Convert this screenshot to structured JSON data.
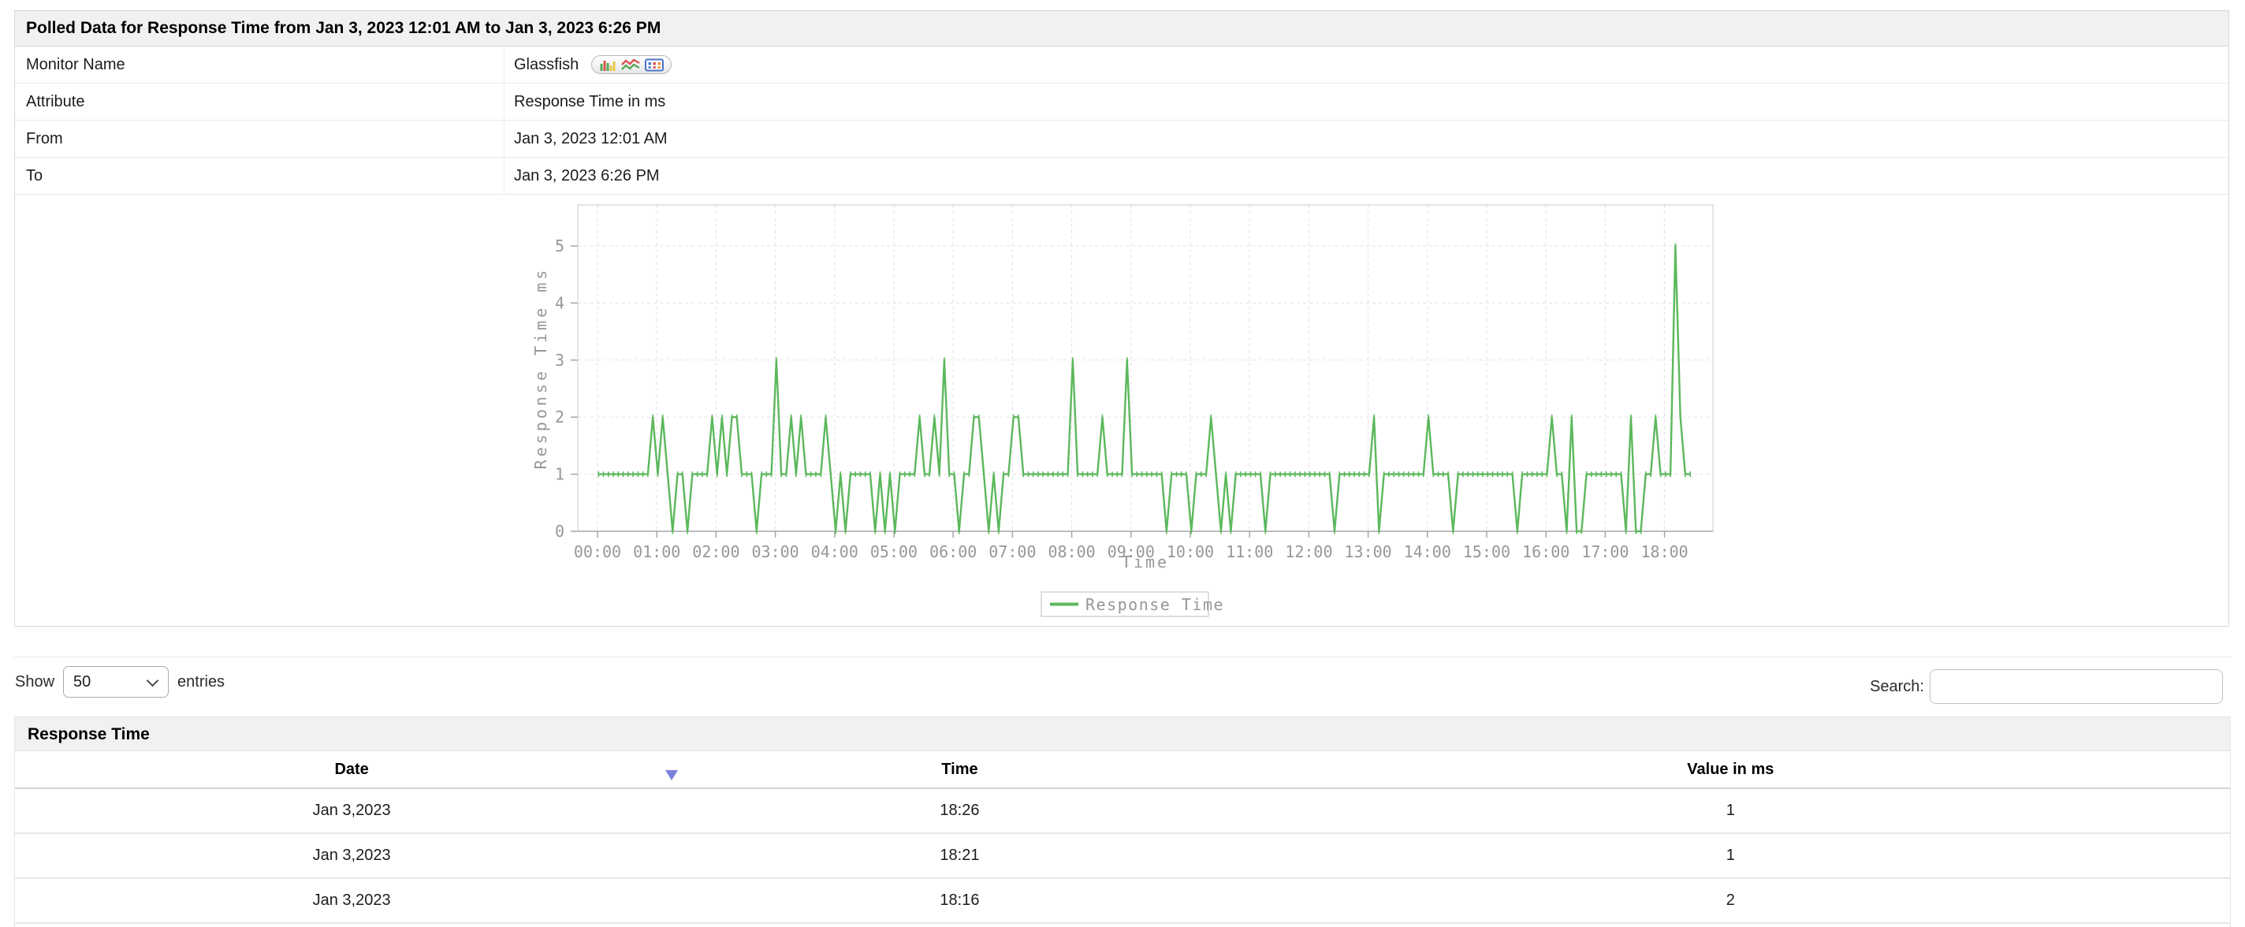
{
  "header": {
    "title": "Polled Data for Response Time from Jan 3, 2023 12:01 AM to Jan 3, 2023 6:26 PM"
  },
  "info": {
    "rows": [
      {
        "label": "Monitor Name",
        "value": "Glassfish"
      },
      {
        "label": "Attribute",
        "value": "Response Time in ms"
      },
      {
        "label": "From",
        "value": "Jan 3, 2023 12:01 AM"
      },
      {
        "label": "To",
        "value": "Jan 3, 2023 6:26 PM"
      }
    ],
    "monitor_icons": [
      "bar-chart-icon",
      "line-graph-icon",
      "data-grid-icon"
    ]
  },
  "chart_data": {
    "type": "line",
    "title": "",
    "xlabel": "Time",
    "ylabel": "Response Time ms",
    "series_name": "Response Time",
    "line_color": "#5cb85c",
    "x_ticks": [
      "00:00",
      "01:00",
      "02:00",
      "03:00",
      "04:00",
      "05:00",
      "06:00",
      "07:00",
      "08:00",
      "09:00",
      "10:00",
      "11:00",
      "12:00",
      "13:00",
      "14:00",
      "15:00",
      "16:00",
      "17:00",
      "18:00"
    ],
    "y_ticks": [
      0,
      1,
      2,
      3,
      4,
      5
    ],
    "ylim": [
      0,
      5.72
    ],
    "grid": "dashed",
    "legend_position": "bottom-center",
    "start_time": "00:01",
    "interval_minutes": 5,
    "values": [
      1,
      1,
      1,
      1,
      1,
      1,
      1,
      1,
      1,
      1,
      1,
      2,
      1,
      2,
      1,
      0,
      1,
      1,
      0,
      1,
      1,
      1,
      1,
      2,
      1,
      2,
      1,
      2,
      2,
      1,
      1,
      1,
      0,
      1,
      1,
      1,
      3,
      1,
      1,
      2,
      1,
      2,
      1,
      1,
      1,
      1,
      2,
      1,
      0,
      1,
      0,
      1,
      1,
      1,
      1,
      1,
      0,
      1,
      0,
      1,
      0,
      1,
      1,
      1,
      1,
      2,
      1,
      1,
      2,
      1,
      3,
      1,
      1,
      0,
      1,
      1,
      2,
      2,
      1,
      0,
      1,
      0,
      1,
      1,
      2,
      2,
      1,
      1,
      1,
      1,
      1,
      1,
      1,
      1,
      1,
      1,
      3,
      1,
      1,
      1,
      1,
      1,
      2,
      1,
      1,
      1,
      1,
      3,
      1,
      1,
      1,
      1,
      1,
      1,
      1,
      0,
      1,
      1,
      1,
      1,
      0,
      1,
      1,
      1,
      2,
      1,
      0,
      1,
      0,
      1,
      1,
      1,
      1,
      1,
      1,
      0,
      1,
      1,
      1,
      1,
      1,
      1,
      1,
      1,
      1,
      1,
      1,
      1,
      1,
      0,
      1,
      1,
      1,
      1,
      1,
      1,
      1,
      2,
      0,
      1,
      1,
      1,
      1,
      1,
      1,
      1,
      1,
      1,
      2,
      1,
      1,
      1,
      1,
      0,
      1,
      1,
      1,
      1,
      1,
      1,
      1,
      1,
      1,
      1,
      1,
      1,
      0,
      1,
      1,
      1,
      1,
      1,
      1,
      2,
      1,
      1,
      0,
      2,
      0,
      0,
      1,
      1,
      1,
      1,
      1,
      1,
      1,
      1,
      0,
      2,
      0,
      0,
      1,
      1,
      2,
      1,
      1,
      1,
      5,
      2,
      1,
      1
    ]
  },
  "controls": {
    "show_label": "Show",
    "page_size": "50",
    "entries_label": "entries",
    "search_label": "Search:",
    "search_value": ""
  },
  "table": {
    "section_title": "Response Time",
    "columns": [
      "Date",
      "Time",
      "Value in ms"
    ],
    "sort_column": "Date",
    "sort_direction": "descending",
    "rows": [
      [
        "Jan 3,2023",
        "18:26",
        "1"
      ],
      [
        "Jan 3,2023",
        "18:21",
        "1"
      ],
      [
        "Jan 3,2023",
        "18:16",
        "2"
      ]
    ]
  },
  "colors": {
    "line_green": "#5cb85c",
    "sort_arrow": "#7b82d9",
    "section_header_bg": "#f1f1f1",
    "axis_text": "#979797"
  }
}
